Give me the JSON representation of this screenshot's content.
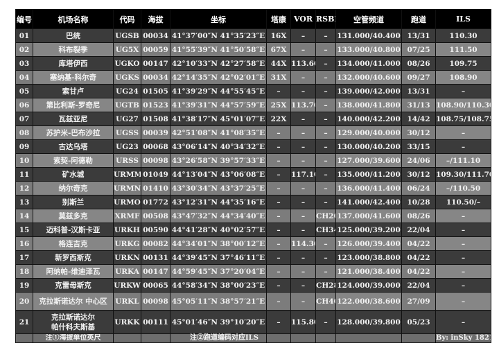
{
  "headers": [
    "编号",
    "机场名称",
    "代码",
    "海拔",
    "坐标",
    "塔康",
    "VOR",
    "RSBN",
    "空管频道",
    "跑道",
    "ILS"
  ],
  "rows": [
    [
      "01",
      "巴统",
      "UGSB",
      "00034",
      "41°37′00″N 41°35′23″E",
      "16X",
      "–",
      "–",
      "131.000/40.400",
      "13/31",
      "110.30"
    ],
    [
      "02",
      "科布裂季",
      "UG5X",
      "00059",
      "41°55′39″N 41°50′58″E",
      "67X",
      "–",
      "–",
      "133.000/40.800",
      "07/25",
      "111.50"
    ],
    [
      "03",
      "库塔伊西",
      "UGKO",
      "00147",
      "42°10′33″N 42°27′58″E",
      "44X",
      "113.60",
      "–",
      "134.000/41.000",
      "08/26",
      "109.75"
    ],
    [
      "04",
      "塞纳基-科尔奇",
      "UGKS",
      "00034",
      "42°14′35″N 42°02′01″E",
      "31X",
      "–",
      "–",
      "132.000/40.600",
      "09/27",
      "108.90"
    ],
    [
      "05",
      "索甘卢",
      "UG24",
      "01505",
      "41°39′29″N 44°55′45″E",
      "–",
      "–",
      "–",
      "139.000/42.000",
      "13/31",
      "–"
    ],
    [
      "06",
      "第比利斯-罗奇尼",
      "UGTB",
      "01523",
      "41°39′31″N 44°57′59″E",
      "25X",
      "113.70",
      "–",
      "138.000/41.800",
      "31/13",
      "108.90/110.30"
    ],
    [
      "07",
      "瓦兹亚尼",
      "UG27",
      "01508",
      "41°38′17″N 45°01′07″E",
      "22X",
      "–",
      "–",
      "140.000/42.200",
      "14/42",
      "108.75/108.75"
    ],
    [
      "08",
      "苏护米-巴布沙拉",
      "UGSS",
      "00039",
      "42°51′08″N 41°08′35″E",
      "–",
      "–",
      "–",
      "129.000/40.000",
      "30/12",
      "–"
    ],
    [
      "09",
      "古达乌塔",
      "UG23",
      "00068",
      "43°06′14″N 40°34′32″E",
      "–",
      "–",
      "–",
      "130.000/40.200",
      "33/15",
      "–"
    ],
    [
      "10",
      "索契-阿德勒",
      "URSS",
      "00098",
      "43°26′58″N 39°57′33″E",
      "–",
      "–",
      "–",
      "127.000/39.600",
      "24/06",
      "–/111.10"
    ],
    [
      "11",
      "矿水城",
      "URMM",
      "01049",
      "44°13′04″N 43°06′08″E",
      "–",
      "117.10",
      "–",
      "135.000/41.200",
      "30/12",
      "109.30/111.70"
    ],
    [
      "12",
      "纳尔奇克",
      "URMN",
      "01410",
      "43°30′34″N 43°37′25″E",
      "–",
      "–",
      "–",
      "136.000/41.400",
      "06/24",
      "–/110.50"
    ],
    [
      "13",
      "别斯兰",
      "URMO",
      "01772",
      "43°12′31″N 44°35′16″E",
      "–",
      "–",
      "–",
      "141.000/42.400",
      "10/28",
      "110.50/–"
    ],
    [
      "14",
      "莫兹多克",
      "XRMF",
      "00508",
      "43°47′32″N 44°34′40″E",
      "–",
      "–",
      "CH20",
      "137.000/41.600",
      "08/26",
      "–"
    ],
    [
      "15",
      "迈科普-汉斯卡亚",
      "URKH",
      "00590",
      "44°41′28″N 40°02′57″E",
      "–",
      "–",
      "CH34",
      "125.000/39.200",
      "22/04",
      "–"
    ],
    [
      "16",
      "格连吉克",
      "URKG",
      "00082",
      "44°34′01″N 38°00′12″E",
      "–",
      "114.30",
      "–",
      "126.000/39.400",
      "04/22",
      "–"
    ],
    [
      "17",
      "新罗西斯克",
      "URKN",
      "00131",
      "44°39′45″N 37°46′11″E",
      "–",
      "–",
      "–",
      "123.000/38.800",
      "04/22",
      "–"
    ],
    [
      "18",
      "阿纳帕-维迪泽瓦",
      "URKA",
      "00147",
      "44°59′45″N 37°20′04″E",
      "–",
      "–",
      "–",
      "121.000/38.400",
      "04/22",
      "–"
    ],
    [
      "19",
      "克雷母斯克",
      "URKW",
      "00065",
      "44°58′34″N 38°00′23″E",
      "–",
      "–",
      "CH28",
      "124.000/39.000",
      "22/04",
      "–"
    ],
    [
      "20",
      "克拉斯诺达尔 中心区",
      "URKL",
      "00098",
      "45°05′11″N 38°57′21″E",
      "–",
      "–",
      "CH40",
      "122.000/38.600",
      "27/09",
      "–"
    ],
    [
      "21",
      "克拉斯诺达尔\n帕什科夫斯基",
      "URKK",
      "00111",
      "45°01′46″N 39°10′20″E",
      "–",
      "115.80",
      "–",
      "128.000/39.800",
      "05/23",
      "–"
    ]
  ],
  "footer": {
    "note1": "注①海拔单位英尺",
    "note2": "注②跑道编码对应ILS",
    "credit": "By: inSky 1821"
  },
  "colors": {
    "header": "#000000",
    "row_dark": "#3b3b3b",
    "row_light": "#7c7c7c"
  }
}
